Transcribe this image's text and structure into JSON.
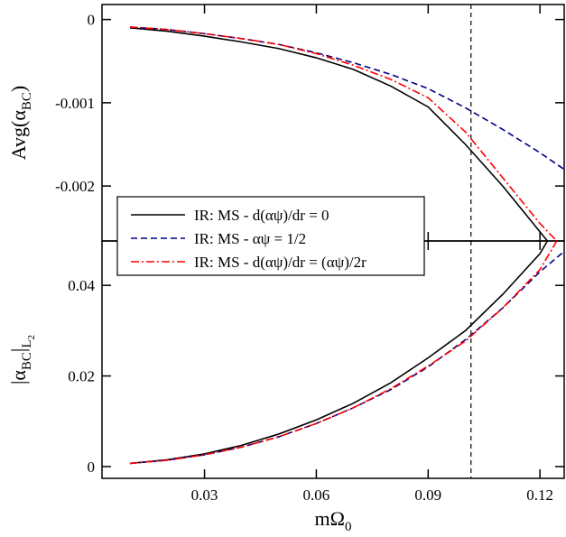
{
  "chart_data": [
    {
      "type": "line",
      "ylabel": [
        "Avg(α",
        "BC",
        ")"
      ],
      "xlim": [
        0.0025,
        0.1265
      ],
      "xticks": [
        0.03,
        0.06,
        0.09,
        0.12
      ],
      "ylim": [
        -0.00266,
        0.00018
      ],
      "yticks": [
        0,
        -0.001,
        -0.002
      ],
      "vline": 0.1015,
      "legend": "lower-left",
      "series": [
        {
          "name": "IR: MS - d(αψ)/dr = 0",
          "color": "#000000",
          "dash": "solid",
          "x": [
            0.01,
            0.02,
            0.03,
            0.04,
            0.05,
            0.06,
            0.07,
            0.08,
            0.09,
            0.1,
            0.11,
            0.12,
            0.122
          ],
          "values": [
            -0.0001,
            -0.00014,
            -0.0002,
            -0.00027,
            -0.00035,
            -0.00046,
            -0.0006,
            -0.0008,
            -0.00105,
            -0.0015,
            -0.002,
            -0.00255,
            -0.00266
          ]
        },
        {
          "name": "IR: MS - αψ = 1/2",
          "color": "#000080",
          "dash": "dashed",
          "x": [
            0.01,
            0.02,
            0.03,
            0.04,
            0.05,
            0.06,
            0.07,
            0.08,
            0.09,
            0.1,
            0.11,
            0.12,
            0.1265
          ],
          "values": [
            -9e-05,
            -0.00012,
            -0.00017,
            -0.00023,
            -0.0003,
            -0.0004,
            -0.00052,
            -0.00066,
            -0.00083,
            -0.00106,
            -0.00132,
            -0.0016,
            -0.0018
          ]
        },
        {
          "name": "IR: MS - d(αψ)/dr = (αψ)/2r",
          "color": "#ff0000",
          "dash": "dashdot",
          "x": [
            0.01,
            0.02,
            0.03,
            0.04,
            0.05,
            0.06,
            0.07,
            0.08,
            0.09,
            0.1,
            0.11,
            0.12,
            0.1245
          ],
          "values": [
            -9e-05,
            -0.00012,
            -0.00017,
            -0.00023,
            -0.0003,
            -0.00041,
            -0.00055,
            -0.00072,
            -0.00094,
            -0.00135,
            -0.0019,
            -0.00245,
            -0.00266
          ]
        }
      ]
    },
    {
      "type": "line",
      "ylabel": [
        "|α",
        "BC",
        "|",
        "L",
        "2"
      ],
      "xlabel": [
        "mΩ",
        "0"
      ],
      "xlim": [
        0.0025,
        0.1265
      ],
      "xticks": [
        0.03,
        0.06,
        0.09,
        0.12
      ],
      "ylim": [
        -0.0026,
        0.0498
      ],
      "yticks": [
        0,
        0.02,
        0.04
      ],
      "vline": 0.1015,
      "series": [
        {
          "color": "#000000",
          "dash": "solid",
          "x": [
            0.01,
            0.02,
            0.03,
            0.04,
            0.05,
            0.06,
            0.07,
            0.08,
            0.09,
            0.1,
            0.11,
            0.12,
            0.122
          ],
          "values": [
            0.0007,
            0.0015,
            0.0028,
            0.0047,
            0.0072,
            0.0103,
            0.014,
            0.0185,
            0.024,
            0.03,
            0.038,
            0.047,
            0.0498
          ]
        },
        {
          "color": "#000080",
          "dash": "dashed",
          "x": [
            0.01,
            0.02,
            0.03,
            0.04,
            0.05,
            0.06,
            0.07,
            0.08,
            0.09,
            0.1,
            0.11,
            0.12,
            0.1265
          ],
          "values": [
            0.0007,
            0.0014,
            0.0026,
            0.0043,
            0.0066,
            0.0095,
            0.013,
            0.017,
            0.022,
            0.028,
            0.035,
            0.043,
            0.0475
          ]
        },
        {
          "color": "#ff0000",
          "dash": "dashdot",
          "x": [
            0.01,
            0.02,
            0.03,
            0.04,
            0.05,
            0.06,
            0.07,
            0.08,
            0.09,
            0.1,
            0.11,
            0.12,
            0.1245
          ],
          "values": [
            0.0007,
            0.0014,
            0.0026,
            0.0043,
            0.0066,
            0.0095,
            0.013,
            0.0172,
            0.0222,
            0.0277,
            0.035,
            0.0435,
            0.0498
          ]
        }
      ]
    }
  ]
}
